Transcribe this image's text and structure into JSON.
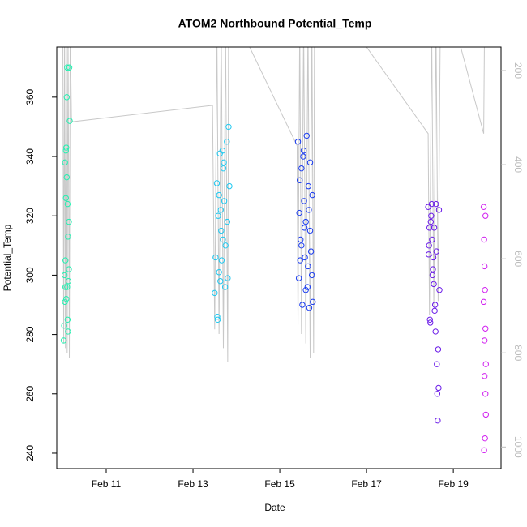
{
  "chart_data": {
    "type": "scatter",
    "title": "ATOM2 Northbound Potential_Temp",
    "x_label": "Date",
    "y_label": "Potential_Temp",
    "xlim": [
      9.86,
      20.1
    ],
    "xticks": [
      {
        "value": 11,
        "label": "Feb 11"
      },
      {
        "value": 13,
        "label": "Feb 13"
      },
      {
        "value": 15,
        "label": "Feb 15"
      },
      {
        "value": 17,
        "label": "Feb 17"
      },
      {
        "value": 19,
        "label": "Feb 19"
      }
    ],
    "ylim": [
      234.8,
      376.9
    ],
    "yticks": [
      240,
      260,
      280,
      300,
      320,
      340,
      360
    ],
    "y2lim": [
      1046,
      150
    ],
    "y2ticks": [
      200,
      400,
      600,
      800,
      1000
    ],
    "y2color": "#bbbbbb",
    "series": [
      {
        "color": "#22f0b0",
        "x": [
          10.02,
          10.03,
          10.05,
          10.04,
          10.06,
          10.07,
          10.05,
          10.08,
          10.09,
          10.1,
          10.06,
          10.08,
          10.11,
          10.12,
          10.07,
          10.1,
          10.13,
          10.14,
          10.15,
          10.09,
          10.11,
          10.16,
          10.12,
          10.14
        ],
        "values": [
          278,
          283,
          291,
          300,
          305,
          326,
          338,
          343,
          360,
          370,
          296,
          292,
          285,
          281,
          342,
          296,
          298,
          318,
          370,
          333,
          324,
          352,
          313,
          302
        ]
      },
      {
        "color": "#1ec8f0",
        "x": [
          13.5,
          13.52,
          13.55,
          13.57,
          13.58,
          13.6,
          13.62,
          13.63,
          13.65,
          13.66,
          13.68,
          13.7,
          13.72,
          13.74,
          13.75,
          13.78,
          13.8,
          13.82,
          13.84,
          13.56,
          13.64,
          13.71,
          13.79,
          13.6,
          13.69
        ],
        "values": [
          294,
          306,
          331,
          285,
          320,
          327,
          341,
          298,
          315,
          305,
          342,
          336,
          325,
          296,
          310,
          345,
          299,
          350,
          330,
          286,
          322,
          338,
          318,
          301,
          312
        ]
      },
      {
        "color": "#1a3cf0",
        "x": [
          15.42,
          15.44,
          15.46,
          15.48,
          15.5,
          15.52,
          15.54,
          15.56,
          15.58,
          15.6,
          15.62,
          15.64,
          15.66,
          15.68,
          15.7,
          15.72,
          15.74,
          15.76,
          15.45,
          15.55,
          15.65,
          15.75,
          15.5,
          15.6,
          15.7,
          15.47,
          15.57,
          15.67
        ],
        "values": [
          345,
          299,
          332,
          312,
          336,
          290,
          340,
          325,
          306,
          318,
          347,
          296,
          330,
          289,
          315,
          308,
          300,
          291,
          321,
          342,
          303,
          327,
          310,
          295,
          338,
          305,
          316,
          322
        ]
      },
      {
        "color": "#6a1ae8",
        "x": [
          18.42,
          18.44,
          18.46,
          18.48,
          18.5,
          18.52,
          18.54,
          18.56,
          18.58,
          18.6,
          18.62,
          18.64,
          18.66,
          18.68,
          18.43,
          18.47,
          18.51,
          18.55,
          18.59,
          18.63,
          18.67,
          18.45,
          18.53,
          18.61,
          18.65,
          18.57,
          18.49
        ],
        "values": [
          323,
          310,
          285,
          318,
          324,
          300,
          306,
          316,
          290,
          324,
          270,
          251,
          262,
          295,
          307,
          284,
          312,
          297,
          281,
          260,
          322,
          316,
          302,
          308,
          275,
          288,
          320
        ]
      },
      {
        "color": "#d11ff0",
        "x": [
          19.7,
          19.71,
          19.72,
          19.73,
          19.74,
          19.75,
          19.7,
          19.72,
          19.74,
          19.71,
          19.73,
          19.75,
          19.72,
          19.74
        ],
        "values": [
          323,
          312,
          303,
          295,
          282,
          270,
          291,
          278,
          260,
          241,
          245,
          253,
          266,
          320
        ]
      }
    ],
    "track": {
      "color": "#c8c8c8",
      "axis": "y2",
      "x": [
        10.0,
        10.02,
        10.04,
        10.06,
        10.08,
        10.1,
        10.12,
        10.15,
        10.17,
        10.2,
        13.45,
        13.5,
        13.55,
        13.6,
        13.65,
        13.7,
        13.75,
        13.8,
        13.82,
        14.2,
        15.4,
        15.42,
        15.46,
        15.5,
        15.55,
        15.6,
        15.65,
        15.7,
        15.74,
        15.78,
        15.8,
        17.0,
        18.42,
        18.45,
        18.5,
        18.55,
        18.6,
        18.65,
        18.7,
        19.17,
        19.7,
        19.72,
        19.74
      ],
      "values": [
        100,
        780,
        100,
        790,
        100,
        800,
        100,
        810,
        100,
        309,
        274,
        750,
        100,
        760,
        100,
        790,
        100,
        820,
        100,
        130,
        360,
        740,
        100,
        760,
        100,
        780,
        100,
        810,
        100,
        800,
        100,
        150,
        334,
        720,
        100,
        700,
        100,
        690,
        100,
        150,
        334,
        100,
        100
      ]
    }
  }
}
